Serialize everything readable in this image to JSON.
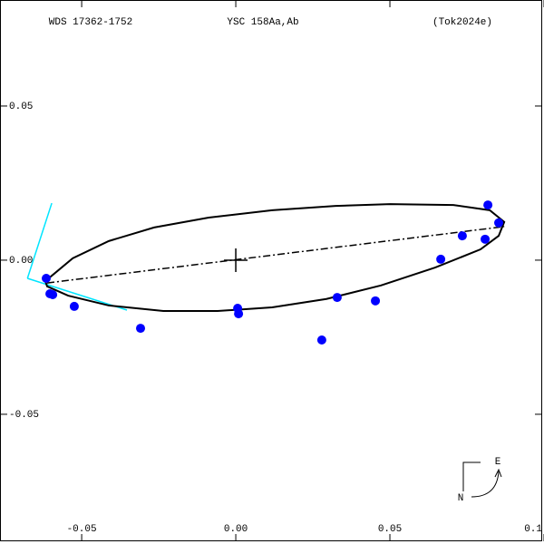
{
  "chart_data": {
    "type": "scatter",
    "header": [
      "WDS 17362-1752",
      "YSC 158Aa,Ab",
      "(Tok2024e)"
    ],
    "compass": [
      "E",
      "N"
    ],
    "xlim": [
      -0.0765,
      0.1
    ],
    "ylim": [
      -0.0912,
      0.0844
    ],
    "xticks": [
      -0.05,
      {
        "value": 0,
        "label": "0.00"
      },
      0.05,
      0.1
    ],
    "yticks": [
      0.05,
      {
        "value": 0,
        "label": "0.00"
      },
      -0.05
    ],
    "color": "#0000ff",
    "x": [
      -0.0615,
      -0.0603,
      -0.0594,
      -0.0524,
      -0.0309,
      0.0006,
      0.0009,
      0.0279,
      0.0329,
      0.0453,
      0.0665,
      0.0735,
      0.0809,
      0.0818,
      0.0853
    ],
    "y": [
      -0.0059,
      -0.0109,
      -0.0112,
      -0.015,
      -0.0221,
      -0.0156,
      -0.0174,
      -0.0259,
      -0.0121,
      -0.0132,
      0.0003,
      0.0079,
      0.0068,
      0.0179,
      0.0121
    ],
    "orbit": {
      "color": "#000000",
      "x": [
        -0.0618,
        -0.0529,
        -0.0412,
        -0.0265,
        -0.0088,
        0.0118,
        0.0324,
        0.05,
        0.0706,
        0.0824,
        0.0871,
        0.0853,
        0.0794,
        0.0647,
        0.0471,
        0.0294,
        0.0118,
        -0.0059,
        -0.0235,
        -0.0412,
        -0.0544,
        -0.0612
      ],
      "y": [
        -0.0068,
        0.0006,
        0.0062,
        0.0106,
        0.0138,
        0.0162,
        0.0176,
        0.0182,
        0.0179,
        0.0162,
        0.0124,
        0.0079,
        0.0035,
        -0.0024,
        -0.0082,
        -0.0126,
        -0.0153,
        -0.0165,
        -0.0165,
        -0.0147,
        -0.0115,
        -0.0085
      ]
    },
    "line_of_nodes": {
      "color": "#000000",
      "x": [
        -0.0612,
        0.0871
      ],
      "y": [
        -0.0074,
        0.0109
      ]
    },
    "periastron": {
      "color": "#00e5ff",
      "x": [
        -0.0676,
        -0.0597,
        -0.0676,
        -0.0353
      ],
      "y": [
        -0.0059,
        0.0185,
        -0.0059,
        -0.0162
      ]
    }
  }
}
